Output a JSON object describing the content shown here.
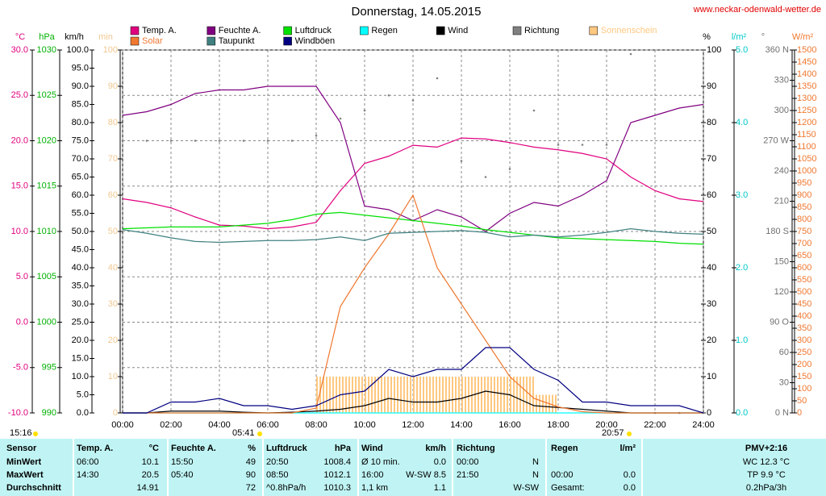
{
  "chart_data": {
    "type": "line",
    "title": "Donnerstag, 14.05.2015",
    "source": "www.neckar-odenwald-wetter.de",
    "annotations": [
      "15:16",
      "05:41",
      "20:57"
    ],
    "xlim": [
      0,
      24
    ],
    "xticks": [
      {
        "value": 0,
        "label": "00:00"
      },
      {
        "value": 2,
        "label": "02:00"
      },
      {
        "value": 4,
        "label": "04:00"
      },
      {
        "value": 6,
        "label": "06:00"
      },
      {
        "value": 8,
        "label": "08:00"
      },
      {
        "value": 10,
        "label": "10:00"
      },
      {
        "value": 12,
        "label": "12:00"
      },
      {
        "value": 14,
        "label": "14:00"
      },
      {
        "value": 16,
        "label": "16:00"
      },
      {
        "value": 18,
        "label": "18:00"
      },
      {
        "value": 20,
        "label": "20:00"
      },
      {
        "value": 22,
        "label": "22:00"
      },
      {
        "value": 24,
        "label": "24:00"
      }
    ],
    "x": [
      0,
      1,
      2,
      3,
      4,
      5,
      6,
      7,
      8,
      9,
      10,
      11,
      12,
      13,
      14,
      15,
      16,
      17,
      18,
      19,
      20,
      21,
      22,
      23,
      24
    ],
    "grid": true,
    "axes": [
      {
        "unit": "°C",
        "color": "#e0007f",
        "ylim": [
          -10,
          30
        ],
        "yticks": [
          {
            "value": -10,
            "label": "-10.0"
          },
          {
            "value": -5,
            "label": "-5.0"
          },
          {
            "value": 0,
            "label": "0.0"
          },
          {
            "value": 5,
            "label": "5.0"
          },
          {
            "value": 10,
            "label": "10.0"
          },
          {
            "value": 15,
            "label": "15.0"
          },
          {
            "value": 20,
            "label": "20.0"
          },
          {
            "value": 25,
            "label": "25.0"
          },
          {
            "value": 30,
            "label": "30.0"
          }
        ]
      },
      {
        "unit": "hPa",
        "color": "#00b000",
        "ylim": [
          990,
          1030
        ],
        "yticks": [
          990,
          995,
          1000,
          1005,
          1010,
          1015,
          1020,
          1025,
          1030
        ]
      },
      {
        "unit": "km/h",
        "color": "#000000",
        "ylim": [
          0,
          100
        ],
        "yticks": [
          {
            "value": 0,
            "label": "0.0"
          },
          {
            "value": 5,
            "label": "5.0"
          },
          {
            "value": 10,
            "label": "10.0"
          },
          {
            "value": 15,
            "label": "15.0"
          },
          {
            "value": 20,
            "label": "20.0"
          },
          {
            "value": 25,
            "label": "25.0"
          },
          {
            "value": 30,
            "label": "30.0"
          },
          {
            "value": 35,
            "label": "35.0"
          },
          {
            "value": 40,
            "label": "40.0"
          },
          {
            "value": 45,
            "label": "45.0"
          },
          {
            "value": 50,
            "label": "50.0"
          },
          {
            "value": 55,
            "label": "55.0"
          },
          {
            "value": 60,
            "label": "60.0"
          },
          {
            "value": 65,
            "label": "65.0"
          },
          {
            "value": 70,
            "label": "70.0"
          },
          {
            "value": 75,
            "label": "75.0"
          },
          {
            "value": 80,
            "label": "80.0"
          },
          {
            "value": 85,
            "label": "85.0"
          },
          {
            "value": 90,
            "label": "90.0"
          },
          {
            "value": 95,
            "label": "95.0"
          },
          {
            "value": 100,
            "label": "100.0"
          }
        ]
      },
      {
        "unit": "min",
        "color": "#f0c890",
        "ylim": [
          0,
          100
        ],
        "yticks": [
          0,
          10,
          20,
          30,
          40,
          50,
          60,
          70,
          80,
          90,
          100
        ]
      },
      {
        "unit": "%",
        "color": "#000000",
        "ylim": [
          0,
          100
        ],
        "yticks": [
          0,
          10,
          20,
          30,
          40,
          50,
          60,
          70,
          80,
          90,
          100
        ]
      },
      {
        "unit": "l/m²",
        "color": "#00c8c8",
        "ylim": [
          0,
          5
        ],
        "yticks": [
          {
            "value": 0,
            "label": "0.0"
          },
          {
            "value": 1,
            "label": "1.0"
          },
          {
            "value": 2,
            "label": "2.0"
          },
          {
            "value": 3,
            "label": "3.0"
          },
          {
            "value": 4,
            "label": "4.0"
          },
          {
            "value": 5,
            "label": "5.0"
          }
        ]
      },
      {
        "unit": "°",
        "color": "#707070",
        "ylim": [
          0,
          360
        ],
        "yticks": [
          {
            "value": 0,
            "label": "0 N"
          },
          30,
          60,
          {
            "value": 90,
            "label": "90 O"
          },
          120,
          150,
          {
            "value": 180,
            "label": "180 S"
          },
          210,
          240,
          {
            "value": 270,
            "label": "270 W"
          },
          300,
          330,
          {
            "value": 360,
            "label": "360 N"
          }
        ]
      },
      {
        "unit": "W/m²",
        "color": "#f07830",
        "ylim": [
          0,
          1500
        ],
        "yticks": [
          0,
          50,
          100,
          150,
          200,
          250,
          300,
          350,
          400,
          450,
          500,
          550,
          600,
          650,
          700,
          750,
          800,
          850,
          900,
          950,
          1000,
          1050,
          1100,
          1150,
          1200,
          1250,
          1300,
          1350,
          1400,
          1450,
          1500
        ]
      }
    ],
    "series": [
      {
        "name": "Temp. A.",
        "color": "#e0007f",
        "axis": "°C",
        "style": "line",
        "values": [
          13.6,
          13.2,
          12.6,
          11.6,
          10.7,
          10.6,
          10.3,
          10.5,
          11.0,
          14.5,
          17.5,
          18.3,
          19.5,
          19.3,
          20.3,
          20.2,
          19.8,
          19.3,
          19.0,
          18.6,
          18.0,
          16.0,
          14.5,
          13.6,
          13.3
        ]
      },
      {
        "name": "Feuchte A.",
        "color": "#800080",
        "axis": "%",
        "style": "line",
        "values": [
          82,
          83,
          85,
          88,
          89,
          89,
          90,
          90,
          90,
          80,
          57,
          56,
          53,
          56,
          54,
          50,
          55,
          58,
          57,
          60,
          64,
          80,
          82,
          84,
          85
        ]
      },
      {
        "name": "Luftdruck",
        "color": "#00e000",
        "axis": "hPa",
        "style": "line",
        "values": [
          1010.3,
          1010.4,
          1010.5,
          1010.5,
          1010.5,
          1010.7,
          1010.9,
          1011.3,
          1011.9,
          1012.1,
          1011.8,
          1011.5,
          1011.2,
          1010.9,
          1010.6,
          1010.2,
          1009.9,
          1009.6,
          1009.3,
          1009.2,
          1009.1,
          1009.0,
          1008.9,
          1008.7,
          1008.6
        ]
      },
      {
        "name": "Regen",
        "color": "#00ffff",
        "axis": "l/m²",
        "style": "line",
        "values": [
          0,
          0,
          0,
          0,
          0,
          0,
          0,
          0,
          0,
          0,
          0,
          0,
          0,
          0,
          0,
          0,
          0,
          0,
          0,
          0,
          0,
          0,
          0,
          0,
          0
        ]
      },
      {
        "name": "Wind",
        "color": "#000000",
        "axis": "km/h",
        "style": "line",
        "values": [
          0,
          0,
          0.5,
          0.5,
          0.5,
          0.2,
          0,
          0.2,
          0.5,
          1,
          2,
          4,
          3,
          3,
          4,
          6,
          5,
          2,
          1.5,
          1,
          0.5,
          0,
          0,
          0,
          0
        ]
      },
      {
        "name": "Richtung",
        "color": "#808080",
        "axis": "°",
        "style": "dots",
        "values": [
          270,
          270,
          270,
          270,
          270,
          270,
          270,
          270,
          275,
          292,
          300,
          315,
          310,
          332,
          250,
          234,
          242,
          300,
          266,
          266,
          266,
          356,
          0,
          0,
          0
        ]
      },
      {
        "name": "Sonnenschein",
        "color": "#ffc880",
        "axis": "min",
        "style": "bars",
        "values": [
          0,
          0,
          0,
          0,
          0,
          0,
          0,
          0,
          10,
          10,
          10,
          10,
          10,
          10,
          10,
          10,
          10,
          5,
          0,
          0,
          0,
          0,
          0,
          0,
          0
        ]
      },
      {
        "name": "Solar",
        "color": "#f07830",
        "axis": "W/m²",
        "style": "line",
        "values": [
          0,
          0,
          0,
          0,
          0,
          0,
          0,
          0,
          20,
          440,
          600,
          740,
          900,
          600,
          450,
          300,
          150,
          60,
          25,
          5,
          0,
          0,
          0,
          0,
          0
        ]
      },
      {
        "name": "Taupunkt",
        "color": "#408080",
        "axis": "°C",
        "style": "line",
        "values": [
          10.2,
          9.8,
          9.3,
          8.9,
          8.8,
          8.9,
          9.0,
          9.0,
          9.1,
          9.4,
          9.0,
          9.8,
          9.9,
          10.0,
          10.1,
          9.9,
          9.4,
          9.6,
          9.4,
          9.6,
          9.9,
          10.3,
          10.0,
          9.8,
          9.7
        ]
      },
      {
        "name": "Windböen",
        "color": "#000080",
        "axis": "km/h",
        "style": "line",
        "values": [
          0,
          0,
          3,
          3,
          4,
          2,
          2,
          1,
          2,
          5,
          6,
          12,
          10,
          12,
          12,
          18,
          18,
          12,
          9,
          3,
          3,
          2,
          2,
          2,
          0
        ]
      }
    ]
  },
  "table": {
    "header": [
      "Sensor",
      "Temp. A.",
      "°C",
      "Feuchte A.",
      "%",
      "Luftdruck",
      "hPa",
      "Wind",
      "km/h",
      "Richtung",
      null,
      "Regen",
      "l/m²",
      "PMV+2:16"
    ],
    "rows": [
      [
        "MinWert",
        "06:00",
        "10.1",
        "15:50",
        "49",
        "20:50",
        "1008.4",
        "Ø 10 min.",
        "0.0",
        "00:00",
        "N",
        null,
        null,
        "WC 12.3 °C"
      ],
      [
        "MaxWert",
        "14:30",
        "20.5",
        "05:40",
        "90",
        "08:50",
        "1012.1",
        "16:00",
        "W-SW 8.5",
        "21:50",
        "N",
        "00:00",
        "0.0",
        "TP 9.9 °C"
      ],
      [
        "Durchschnitt",
        null,
        "14.91",
        null,
        "72",
        "^0.8hPa/h",
        "1010.3",
        "1,1 km",
        "1.1",
        null,
        "W-SW",
        "Gesamt:",
        "0.0",
        "0.2hPa/3h"
      ]
    ]
  }
}
